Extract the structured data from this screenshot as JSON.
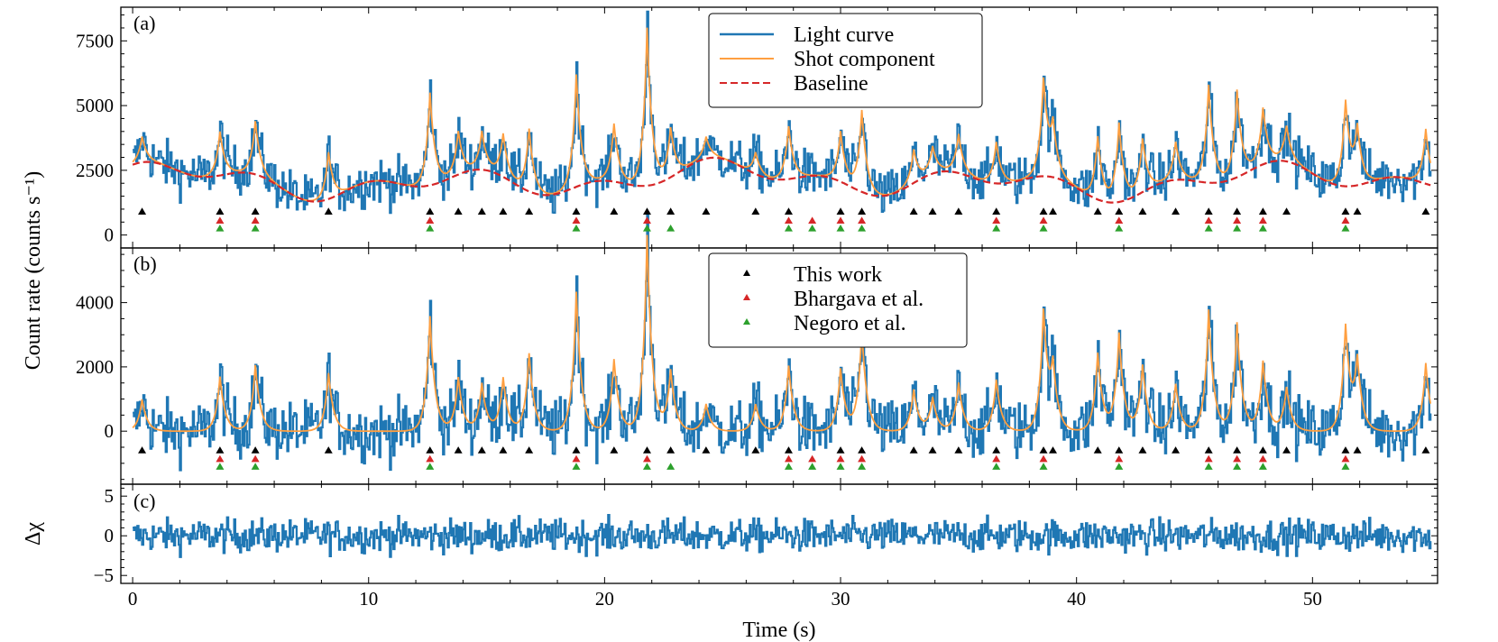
{
  "chart_data": {
    "type": "line",
    "xlabel": "Time (s)",
    "xlim": [
      -0.5,
      55.3
    ],
    "xticks": [
      0,
      10,
      20,
      30,
      40,
      50
    ],
    "xtick_labels": [
      "0",
      "10",
      "20",
      "30",
      "40",
      "50"
    ],
    "shared_ylabel": "Count rate (counts s⁻¹)",
    "colors": {
      "light_curve": "#1f77b4",
      "shot": "#ff9f40",
      "baseline": "#d62728",
      "this_work": "#000000",
      "bhargava": "#d62728",
      "negoro": "#2ca02c"
    },
    "shots": {
      "this_work": [
        0.4,
        3.7,
        5.2,
        8.3,
        12.6,
        13.8,
        14.8,
        15.7,
        16.8,
        18.8,
        20.4,
        21.8,
        22.8,
        24.3,
        26.4,
        27.8,
        30.0,
        30.9,
        33.1,
        33.9,
        35.0,
        36.6,
        38.6,
        39.0,
        40.9,
        41.8,
        42.8,
        44.2,
        45.6,
        46.8,
        47.9,
        48.9,
        51.4,
        51.9,
        54.8
      ],
      "bhargava": [
        3.7,
        5.2,
        12.6,
        18.8,
        21.8,
        27.8,
        28.8,
        30.0,
        30.9,
        36.6,
        38.6,
        41.8,
        45.6,
        46.8,
        47.9,
        51.4
      ],
      "negoro": [
        3.7,
        5.2,
        12.6,
        18.8,
        21.8,
        22.8,
        27.8,
        28.8,
        30.0,
        30.9,
        36.6,
        38.6,
        41.8,
        45.6,
        46.8,
        47.9,
        51.4
      ],
      "peak_heights_a": [
        3800,
        4000,
        4400,
        3200,
        5500,
        4000,
        4000,
        3900,
        4100,
        6200,
        4300,
        8000,
        4100,
        3800,
        3200,
        4200,
        4000,
        4800,
        3300,
        3400,
        3900,
        3600,
        5900,
        4000,
        3800,
        4300,
        3700,
        3600,
        5800,
        5600,
        4900,
        4200,
        5100,
        4000,
        4100
      ]
    },
    "panels": [
      {
        "tag": "(a)",
        "ylim": [
          -500,
          8800
        ],
        "yticks": [
          0,
          2500,
          5000,
          7500
        ],
        "ytick_labels": [
          "0",
          "2500",
          "5000",
          "7500"
        ],
        "legend": [
          "Light curve",
          "Shot component",
          "Baseline"
        ]
      },
      {
        "tag": "(b)",
        "ylim": [
          -1650,
          5700
        ],
        "yticks": [
          0,
          2000,
          4000
        ],
        "ytick_labels": [
          "0",
          "2000",
          "4000"
        ],
        "legend": [
          "This work",
          "Bhargava et al.",
          "Negoro et al."
        ]
      },
      {
        "tag": "(c)",
        "ylabel": "Δχ",
        "ylim": [
          -6,
          6.5
        ],
        "yticks": [
          -5,
          0,
          5
        ],
        "ytick_labels": [
          "−5",
          "0",
          "5"
        ]
      }
    ]
  }
}
